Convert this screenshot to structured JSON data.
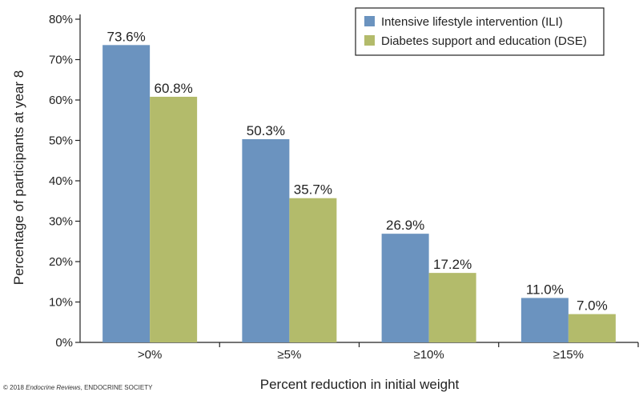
{
  "chart_data": {
    "type": "bar",
    "categories": [
      ">0%",
      "≥5%",
      "≥10%",
      "≥15%"
    ],
    "series": [
      {
        "name": "Intensive lifestyle intervention (ILI)",
        "values": [
          73.6,
          50.3,
          26.9,
          11.0
        ],
        "labels": [
          "73.6%",
          "50.3%",
          "26.9%",
          "11.0%"
        ],
        "color": "#6b93bf"
      },
      {
        "name": "Diabetes support and education (DSE)",
        "values": [
          60.8,
          35.7,
          17.2,
          7.0
        ],
        "labels": [
          "60.8%",
          "35.7%",
          "17.2%",
          "7.0%"
        ],
        "color": "#b3bb6b"
      }
    ],
    "xlabel": "Percent reduction in initial weight",
    "ylabel": "Percentage of participants at year 8",
    "ylim": [
      0,
      80
    ],
    "yticks": [
      0,
      10,
      20,
      30,
      40,
      50,
      60,
      70,
      80
    ],
    "ytick_labels": [
      "0%",
      "10%",
      "20%",
      "30%",
      "40%",
      "50%",
      "60%",
      "70%",
      "80%"
    ],
    "grid": false,
    "legend_position": "top-right"
  },
  "footer": {
    "copyright_prefix": "© 2018 ",
    "copyright_journal": "Endocrine Reviews",
    "copyright_suffix": ", ENDOCRINE SOCIETY"
  }
}
